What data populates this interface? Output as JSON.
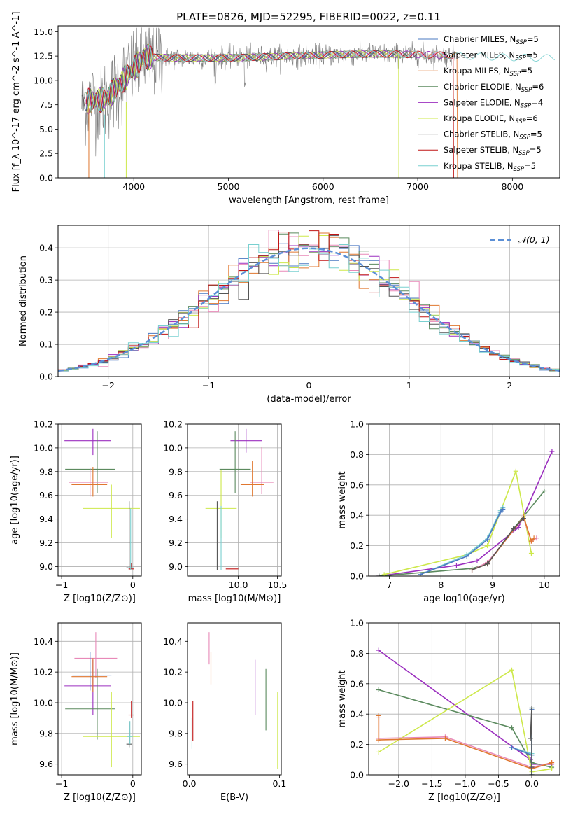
{
  "figure": {
    "title": "PLATE=0826, MJD=52295, FIBERID=0022, z=0.11"
  },
  "colors": {
    "chabrier_miles": "#4a78c2",
    "salpeter_miles": "#e889b8",
    "kroupa_miles": "#e0772f",
    "chabrier_elodie": "#5b8a5e",
    "salpeter_elodie": "#9b2fbf",
    "kroupa_elodie": "#cde84a",
    "chabrier_stelib": "#555555",
    "salpeter_stelib": "#c01515",
    "kroupa_stelib": "#79d0d0",
    "observed": "#808080",
    "normal": "#5b8fd6"
  },
  "legend_spectrum": [
    {
      "label": "Chabrier MILES, N",
      "sub": "SSP",
      "tail": "=5",
      "color": "#4a78c2"
    },
    {
      "label": "Salpeter MILES, N",
      "sub": "SSP",
      "tail": "=5",
      "color": "#e889b8"
    },
    {
      "label": "Kroupa MILES, N",
      "sub": "SSP",
      "tail": "=5",
      "color": "#e0772f"
    },
    {
      "label": "Chabrier ELODIE, N",
      "sub": "SSP",
      "tail": "=6",
      "color": "#5b8a5e"
    },
    {
      "label": "Salpeter ELODIE, N",
      "sub": "SSP",
      "tail": "=4",
      "color": "#9b2fbf"
    },
    {
      "label": "Kroupa ELODIE, N",
      "sub": "SSP",
      "tail": "=6",
      "color": "#cde84a"
    },
    {
      "label": "Chabrier STELIB, N",
      "sub": "SSP",
      "tail": "=5",
      "color": "#555555"
    },
    {
      "label": "Salpeter STELIB, N",
      "sub": "SSP",
      "tail": "=5",
      "color": "#c01515"
    },
    {
      "label": "Kroupa STELIB, N",
      "sub": "SSP",
      "tail": "=5",
      "color": "#79d0d0"
    }
  ],
  "legend_normal": {
    "label": "𝒩(0, 1)"
  },
  "chart_data": [
    {
      "id": "spectrum",
      "type": "line",
      "title": "PLATE=0826, MJD=52295, FIBERID=0022, z=0.11",
      "xlabel": "wavelength [Angstrom, rest frame]",
      "ylabel": "Flux [f_λ 10^-17 erg cm^-2 s^-1 A^-1]",
      "xlim": [
        3200,
        8500
      ],
      "ylim": [
        0,
        15.6
      ],
      "xticks": [
        4000,
        5000,
        6000,
        7000,
        8000
      ],
      "yticks": [
        0.0,
        2.5,
        5.0,
        7.5,
        10.0,
        12.5,
        15.0
      ],
      "grid": false,
      "legend": "upper-right",
      "observed_range": [
        3450,
        7400
      ],
      "observed_level": 12.5,
      "model_level_start": 7.8
    },
    {
      "id": "residuals",
      "type": "step",
      "xlabel": "(data-model)/error",
      "ylabel": "Normed distribution",
      "xlim": [
        -2.5,
        2.5
      ],
      "ylim": [
        0,
        0.47
      ],
      "xticks": [
        -2,
        -1,
        0,
        1,
        2
      ],
      "yticks": [
        0.0,
        0.1,
        0.2,
        0.3,
        0.4
      ],
      "grid": true,
      "legend": "upper-right",
      "bin_width": 0.1,
      "normal": {
        "mean": 0,
        "sigma": 1
      }
    },
    {
      "id": "age-vs-Z",
      "type": "errorbar",
      "xlabel": "Z [log10(Z/Z⊙)]",
      "ylabel": "age [log10(age/yr)]",
      "xlim": [
        -1.05,
        0.12
      ],
      "ylim": [
        8.92,
        10.2
      ],
      "xticks": [
        -1,
        0
      ],
      "yticks": [
        9.0,
        9.2,
        9.4,
        9.6,
        9.8,
        10.0,
        10.2
      ],
      "grid": true,
      "points": [
        {
          "x": -0.56,
          "xerr": [
            0.4,
            0.25
          ],
          "y": 10.06,
          "yerr": [
            0.12,
            0.1
          ],
          "color": "#9b2fbf"
        },
        {
          "x": -0.5,
          "xerr": [
            0.45,
            0.25
          ],
          "y": 9.82,
          "yerr": [
            0.2,
            0.32
          ],
          "color": "#5b8a5e"
        },
        {
          "x": -0.6,
          "xerr": [
            0.3,
            0.25
          ],
          "y": 9.71,
          "yerr": [
            0.12,
            0.12
          ],
          "color": "#e889b8"
        },
        {
          "x": -0.56,
          "xerr": [
            0.3,
            0.2
          ],
          "y": 9.69,
          "yerr": [
            0.1,
            0.15
          ],
          "color": "#e0772f"
        },
        {
          "x": -0.3,
          "xerr": [
            0.4,
            0.4
          ],
          "y": 9.49,
          "yerr": [
            0.25,
            0.2
          ],
          "color": "#cde84a"
        },
        {
          "x": -0.05,
          "xerr": [
            0.04,
            0.04
          ],
          "y": 8.99,
          "yerr": [
            0.02,
            0.56
          ],
          "color": "#555555"
        },
        {
          "x": -0.02,
          "xerr": [
            0.04,
            0.04
          ],
          "y": 8.98,
          "yerr": [
            0.0,
            0.05
          ],
          "color": "#c01515"
        },
        {
          "x": -0.03,
          "xerr": [
            0.04,
            0.04
          ],
          "y": 8.99,
          "yerr": [
            0.02,
            0.5
          ],
          "color": "#79d0d0"
        }
      ]
    },
    {
      "id": "age-vs-mass",
      "type": "errorbar",
      "xlabel": "mass [log10(M/M⊙)]",
      "ylabel": "",
      "xlim": [
        9.35,
        10.55
      ],
      "ylim": [
        8.92,
        10.2
      ],
      "xticks": [
        10.0,
        10.5
      ],
      "yticks": [
        9.0,
        9.2,
        9.4,
        9.6,
        9.8,
        10.0,
        10.2
      ],
      "grid": true,
      "points": [
        {
          "x": 10.1,
          "xerr": [
            0.2,
            0.2
          ],
          "y": 10.06,
          "yerr": [
            0.1,
            0.1
          ],
          "color": "#9b2fbf"
        },
        {
          "x": 9.96,
          "xerr": [
            0.2,
            0.2
          ],
          "y": 9.82,
          "yerr": [
            0.2,
            0.32
          ],
          "color": "#5b8a5e"
        },
        {
          "x": 10.3,
          "xerr": [
            0.15,
            0.15
          ],
          "y": 9.71,
          "yerr": [
            0.1,
            0.3
          ],
          "color": "#e889b8"
        },
        {
          "x": 10.18,
          "xerr": [
            0.15,
            0.15
          ],
          "y": 9.69,
          "yerr": [
            0.1,
            0.2
          ],
          "color": "#e0772f"
        },
        {
          "x": 9.78,
          "xerr": [
            0.2,
            0.2
          ],
          "y": 9.49,
          "yerr": [
            0.25,
            0.32
          ],
          "color": "#cde84a"
        },
        {
          "x": 9.73,
          "xerr": [
            0.0,
            0.0
          ],
          "y": 8.99,
          "yerr": [
            0.02,
            0.56
          ],
          "color": "#555555"
        },
        {
          "x": 9.92,
          "xerr": [
            0.08,
            0.08
          ],
          "y": 8.98,
          "yerr": [
            0.0,
            0.0
          ],
          "color": "#c01515"
        },
        {
          "x": 9.78,
          "xerr": [
            0.0,
            0.0
          ],
          "y": 8.99,
          "yerr": [
            0.02,
            0.52
          ],
          "color": "#79d0d0"
        }
      ]
    },
    {
      "id": "massweight-vs-age",
      "type": "line",
      "xlabel": "age log10(age/yr)",
      "ylabel": "mass weight",
      "xlim": [
        6.6,
        10.3
      ],
      "ylim": [
        0,
        1.0
      ],
      "xticks": [
        7,
        8,
        9,
        10
      ],
      "yticks": [
        0.0,
        0.2,
        0.4,
        0.6,
        0.8,
        1.0
      ],
      "grid": true,
      "series": [
        {
          "color": "#9b2fbf",
          "x": [
            6.8,
            8.3,
            8.7,
            9.5,
            10.15
          ],
          "y": [
            0.0,
            0.07,
            0.1,
            0.32,
            0.82
          ]
        },
        {
          "color": "#5b8a5e",
          "x": [
            6.8,
            8.6,
            8.9,
            9.4,
            10.0
          ],
          "y": [
            0.0,
            0.05,
            0.08,
            0.31,
            0.56
          ]
        },
        {
          "color": "#cde84a",
          "x": [
            6.9,
            8.5,
            8.9,
            9.45,
            9.75
          ],
          "y": [
            0.01,
            0.14,
            0.2,
            0.69,
            0.15
          ]
        },
        {
          "color": "#e889b8",
          "x": [
            8.6,
            8.9,
            9.6,
            9.75,
            9.85
          ],
          "y": [
            0.04,
            0.09,
            0.38,
            0.23,
            0.25
          ]
        },
        {
          "color": "#e0772f",
          "x": [
            8.6,
            8.9,
            9.6,
            9.75,
            9.8
          ],
          "y": [
            0.04,
            0.08,
            0.39,
            0.23,
            0.25
          ]
        },
        {
          "color": "#79d0d0",
          "x": [
            7.6,
            8.5,
            8.9,
            9.15,
            9.2
          ],
          "y": [
            0.01,
            0.14,
            0.25,
            0.43,
            0.45
          ]
        },
        {
          "color": "#4a78c2",
          "x": [
            7.6,
            8.5,
            8.9,
            9.15,
            9.2
          ],
          "y": [
            0.01,
            0.13,
            0.24,
            0.42,
            0.44
          ]
        },
        {
          "color": "#555555",
          "x": [
            8.6,
            8.9,
            9.4,
            9.6
          ],
          "y": [
            0.04,
            0.08,
            0.31,
            0.38
          ]
        }
      ]
    },
    {
      "id": "mass-vs-Z",
      "type": "errorbar",
      "xlabel": "Z [log10(Z/Z⊙)]",
      "ylabel": "mass [log10(M/M⊙)]",
      "xlim": [
        -1.05,
        0.12
      ],
      "ylim": [
        9.53,
        10.52
      ],
      "xticks": [
        -1,
        0
      ],
      "yticks": [
        9.6,
        9.8,
        10.0,
        10.2,
        10.4
      ],
      "grid": true,
      "points": [
        {
          "x": -0.56,
          "xerr": [
            0.4,
            0.25
          ],
          "y": 10.11,
          "yerr": [
            0.19,
            0.17
          ],
          "color": "#9b2fbf"
        },
        {
          "x": -0.5,
          "xerr": [
            0.45,
            0.25
          ],
          "y": 9.96,
          "yerr": [
            0.2,
            0.26
          ],
          "color": "#5b8a5e"
        },
        {
          "x": -0.52,
          "xerr": [
            0.3,
            0.3
          ],
          "y": 10.29,
          "yerr": [
            0.13,
            0.17
          ],
          "color": "#e889b8"
        },
        {
          "x": -0.56,
          "xerr": [
            0.3,
            0.2
          ],
          "y": 10.17,
          "yerr": [
            0.1,
            0.12
          ],
          "color": "#e0772f"
        },
        {
          "x": -0.6,
          "xerr": [
            0.25,
            0.3
          ],
          "y": 10.18,
          "yerr": [
            0.1,
            0.15
          ],
          "color": "#4a78c2"
        },
        {
          "x": -0.3,
          "xerr": [
            0.4,
            0.4
          ],
          "y": 9.78,
          "yerr": [
            0.2,
            0.29
          ],
          "color": "#cde84a"
        },
        {
          "x": -0.05,
          "xerr": [
            0.04,
            0.04
          ],
          "y": 9.73,
          "yerr": [
            0.02,
            0.15
          ],
          "color": "#555555"
        },
        {
          "x": -0.02,
          "xerr": [
            0.04,
            0.04
          ],
          "y": 9.92,
          "yerr": [
            0.02,
            0.09
          ],
          "color": "#c01515"
        },
        {
          "x": -0.04,
          "xerr": [
            0.04,
            0.04
          ],
          "y": 9.78,
          "yerr": [
            0.05,
            0.1
          ],
          "color": "#79d0d0"
        }
      ]
    },
    {
      "id": "mass-vs-EBV",
      "type": "errorbar",
      "xlabel": "E(B-V)",
      "ylabel": "",
      "xlim": [
        -0.002,
        0.102
      ],
      "ylim": [
        9.53,
        10.52
      ],
      "xticks": [
        0.0,
        0.1
      ],
      "yticks": [
        9.6,
        9.8,
        10.0,
        10.2,
        10.4
      ],
      "grid": false,
      "points": [
        {
          "x": 0.022,
          "y": 10.36,
          "yerr": [
            0.11,
            0.1
          ],
          "color": "#e889b8"
        },
        {
          "x": 0.024,
          "y": 10.23,
          "yerr": [
            0.11,
            0.1
          ],
          "color": "#e0772f"
        },
        {
          "x": 0.073,
          "y": 10.1,
          "yerr": [
            0.18,
            0.18
          ],
          "color": "#9b2fbf"
        },
        {
          "x": 0.085,
          "y": 10.0,
          "yerr": [
            0.18,
            0.22
          ],
          "color": "#5b8a5e"
        },
        {
          "x": 0.098,
          "y": 9.82,
          "yerr": [
            0.25,
            0.25
          ],
          "color": "#cde84a"
        },
        {
          "x": 0.004,
          "y": 9.88,
          "yerr": [
            0.13,
            0.13
          ],
          "color": "#c01515"
        },
        {
          "x": 0.003,
          "y": 9.8,
          "yerr": [
            0.1,
            0.1
          ],
          "color": "#79d0d0"
        }
      ]
    },
    {
      "id": "massweight-vs-Z",
      "type": "line",
      "xlabel": "Z [log10(Z/Z⊙)]",
      "ylabel": "mass weight",
      "xlim": [
        -2.45,
        0.42
      ],
      "ylim": [
        0,
        1.0
      ],
      "xticks": [
        -2.0,
        -1.5,
        -1.0,
        -0.5,
        0.0
      ],
      "yticks": [
        0.0,
        0.2,
        0.4,
        0.6,
        0.8,
        1.0
      ],
      "grid": true,
      "series": [
        {
          "color": "#9b2fbf",
          "x": [
            -2.3,
            -0.02,
            0.0,
            0.3
          ],
          "y": [
            0.82,
            0.1,
            0.07,
            0.07
          ]
        },
        {
          "color": "#5b8a5e",
          "x": [
            -2.3,
            -0.3,
            0.0,
            0.3
          ],
          "y": [
            0.56,
            0.31,
            0.08,
            0.05
          ]
        },
        {
          "color": "#cde84a",
          "x": [
            -2.3,
            -0.3,
            0.0,
            0.3
          ],
          "y": [
            0.15,
            0.69,
            0.02,
            0.04
          ]
        },
        {
          "color": "#e889b8",
          "x": [
            -2.3,
            -2.3,
            -1.3,
            0.0,
            0.3
          ],
          "y": [
            0.38,
            0.24,
            0.25,
            0.05,
            0.08
          ]
        },
        {
          "color": "#e0772f",
          "x": [
            -2.3,
            -2.3,
            -1.3,
            0.0,
            0.3
          ],
          "y": [
            0.39,
            0.23,
            0.24,
            0.04,
            0.08
          ]
        },
        {
          "color": "#79d0d0",
          "x": [
            -0.3,
            0.0,
            0.0,
            0.0
          ],
          "y": [
            0.18,
            0.14,
            0.44,
            0.0
          ]
        },
        {
          "color": "#4a78c2",
          "x": [
            -0.3,
            0.0,
            0.0,
            0.0
          ],
          "y": [
            0.18,
            0.13,
            0.43,
            0.0
          ]
        },
        {
          "color": "#555555",
          "x": [
            -0.02,
            0.0,
            0.0,
            0.0
          ],
          "y": [
            0.24,
            0.44,
            0.05,
            0.0
          ]
        }
      ]
    }
  ]
}
